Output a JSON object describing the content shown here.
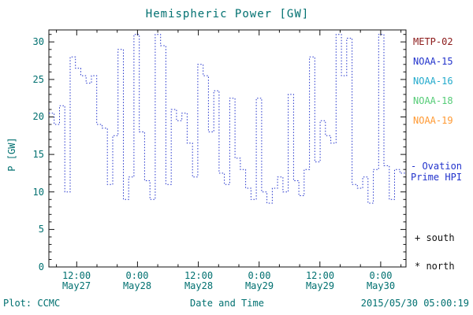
{
  "title": "Hemispheric Power [GW]",
  "footer": {
    "plot_credit": "Plot: CCMC",
    "timestamp": "2015/05/30 05:00:19"
  },
  "legend": {
    "satellites": [
      {
        "label": "METP-02",
        "color": "#8b1a1a"
      },
      {
        "label": "NOAA-15",
        "color": "#2233cc"
      },
      {
        "label": "NOAA-16",
        "color": "#22aacc"
      },
      {
        "label": "NOAA-18",
        "color": "#55cc77"
      },
      {
        "label": "NOAA-19",
        "color": "#ff9933"
      }
    ],
    "ovation_line1": "- Ovation",
    "ovation_line2": "Prime HPI",
    "ovation_color": "#2233cc",
    "south_note": "+ south",
    "north_note": "* north"
  },
  "chart_data": {
    "type": "line",
    "style": "step-dotted",
    "title": "Hemispheric Power [GW]",
    "xlabel": "Date and Time",
    "ylabel": "P [GW]",
    "ylim": [
      0,
      31.6
    ],
    "xlim_hours": [
      6.5,
      77
    ],
    "grid": false,
    "legend_position": "right",
    "y_ticks": [
      0,
      5,
      10,
      15,
      20,
      25,
      30
    ],
    "y_tick_labels": [
      "0",
      "5",
      "10",
      "15",
      "20",
      "25",
      "30"
    ],
    "x_ticks_hours": [
      12,
      24,
      36,
      48,
      60,
      72
    ],
    "x_tick_labels": [
      {
        "time": "12:00",
        "date": "May27"
      },
      {
        "time": "0:00",
        "date": "May28"
      },
      {
        "time": "12:00",
        "date": "May28"
      },
      {
        "time": "0:00",
        "date": "May29"
      },
      {
        "time": "12:00",
        "date": "May29"
      },
      {
        "time": "0:00",
        "date": "May30"
      }
    ],
    "series": [
      {
        "name": "Ovation Prime HPI",
        "color": "#2233cc",
        "x_hours": [
          6.5,
          7.55,
          8.6,
          9.65,
          10.7,
          11.75,
          12.8,
          13.85,
          14.9,
          15.95,
          17.0,
          18.05,
          19.1,
          20.15,
          21.2,
          22.25,
          23.3,
          24.35,
          25.4,
          26.45,
          27.5,
          28.55,
          29.6,
          30.65,
          31.7,
          32.75,
          33.8,
          34.85,
          35.9,
          36.95,
          38.0,
          39.05,
          40.1,
          41.15,
          42.2,
          43.25,
          44.3,
          45.35,
          46.4,
          47.45,
          48.5,
          49.55,
          50.6,
          51.65,
          52.7,
          53.75,
          54.8,
          55.85,
          56.9,
          57.95,
          59.0,
          60.05,
          61.1,
          62.15,
          63.2,
          64.25,
          65.3,
          66.35,
          67.4,
          68.45,
          69.5,
          70.55,
          71.6,
          72.65,
          73.7,
          74.75,
          75.8
        ],
        "values": [
          20.5,
          19.0,
          21.5,
          10.0,
          28.0,
          26.5,
          25.5,
          24.5,
          25.5,
          19.0,
          18.5,
          11.0,
          17.5,
          29.0,
          9.0,
          12.0,
          31.0,
          18.0,
          11.5,
          9.0,
          31.0,
          29.5,
          11.0,
          21.0,
          19.5,
          20.5,
          16.5,
          12.0,
          27.0,
          25.5,
          18.0,
          23.5,
          12.5,
          11.0,
          22.5,
          14.5,
          13.0,
          10.5,
          9.0,
          22.5,
          10.0,
          8.5,
          10.5,
          12.0,
          10.0,
          23.0,
          11.5,
          9.5,
          13.0,
          28.0,
          14.0,
          19.5,
          17.5,
          16.5,
          31.0,
          25.5,
          30.5,
          11.0,
          10.5,
          12.0,
          8.5,
          13.0,
          31.0,
          13.5,
          9.0,
          13.0,
          12.5
        ]
      }
    ]
  }
}
